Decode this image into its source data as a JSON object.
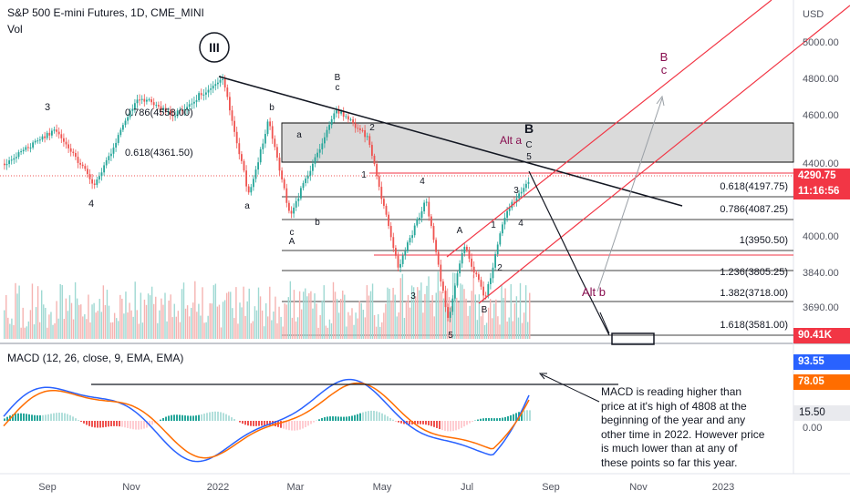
{
  "header": {
    "title": "S&P 500 E-mini Futures, 1D, CME_MINI",
    "vol_label": "Vol"
  },
  "macd_header": "MACD (12, 26, close, 9, EMA, EMA)",
  "colors": {
    "up": "#26a69a",
    "down": "#ef5350",
    "macd_line": "#2962ff",
    "signal_line": "#ff6d00",
    "box_fill": "#d4d4d4",
    "channel": "#f23645",
    "annotation": "#880e4f"
  },
  "price_axis": {
    "unit": "USD",
    "ticks": [
      "5000.00",
      "4800.00",
      "4600.00",
      "4400.00",
      "4000.00",
      "3840.00",
      "3690.00"
    ]
  },
  "price_tags": {
    "last_price": "4290.75",
    "countdown": "11:16:56",
    "volume": "90.41K",
    "macd_value": "93.55",
    "signal_value": "78.05",
    "hist_value": "15.50",
    "macd_zero_label": "0.00"
  },
  "time_axis": [
    "Sep",
    "Nov",
    "2022",
    "Mar",
    "May",
    "Jul",
    "Sep",
    "Nov",
    "2023"
  ],
  "fib_levels": [
    {
      "label": "0.786(4558.00)"
    },
    {
      "label": "0.618(4361.50)"
    },
    {
      "label": "0.618(4197.75)"
    },
    {
      "label": "0.786(4087.25)"
    },
    {
      "label": "1(3950.50)"
    },
    {
      "label": "1.236(3805.25)"
    },
    {
      "label": "1.382(3718.00)"
    },
    {
      "label": "1.618(3581.00)"
    }
  ],
  "wave_labels": [
    {
      "text": "III",
      "note": "circled"
    },
    {
      "text": "3"
    },
    {
      "text": "4"
    },
    {
      "text": "b"
    },
    {
      "text": "a"
    },
    {
      "text": "a"
    },
    {
      "text": "B"
    },
    {
      "text": "c"
    },
    {
      "text": "2"
    },
    {
      "text": "b"
    },
    {
      "text": "c"
    },
    {
      "text": "A"
    },
    {
      "text": "1"
    },
    {
      "text": "4"
    },
    {
      "text": "A"
    },
    {
      "text": "1"
    },
    {
      "text": "3"
    },
    {
      "text": "4"
    },
    {
      "text": "2"
    },
    {
      "text": "3"
    },
    {
      "text": "B"
    },
    {
      "text": "5"
    },
    {
      "text": "B"
    },
    {
      "text": "C"
    },
    {
      "text": "5"
    },
    {
      "text": "Alt a"
    },
    {
      "text": "Alt b"
    },
    {
      "text": "B"
    },
    {
      "text": "c"
    }
  ],
  "annotation_note": "MACD is reading higher than price at it's high of 4808 at the beginning of the year and any other time in 2022.  However price is much lower than at any of these points so far this year.",
  "chart_data": {
    "type": "candlestick",
    "title": "S&P 500 E-mini Futures, 1D, CME_MINI",
    "ylabel": "USD",
    "x_range": [
      "2021-08",
      "2023-01"
    ],
    "ylim": [
      3581,
      5100
    ],
    "price_path": [
      {
        "date": "2021-08-15",
        "price": 4400
      },
      {
        "date": "2021-09-05",
        "price": 4540
      },
      {
        "date": "2021-10-04",
        "price": 4280
      },
      {
        "date": "2021-11-05",
        "price": 4700
      },
      {
        "date": "2021-12-01",
        "price": 4600
      },
      {
        "date": "2022-01-04",
        "price": 4808
      },
      {
        "date": "2022-01-24",
        "price": 4220
      },
      {
        "date": "2022-02-08",
        "price": 4580
      },
      {
        "date": "2022-02-24",
        "price": 4110
      },
      {
        "date": "2022-03-29",
        "price": 4630
      },
      {
        "date": "2022-04-20",
        "price": 4510
      },
      {
        "date": "2022-05-12",
        "price": 3860
      },
      {
        "date": "2022-06-01",
        "price": 4200
      },
      {
        "date": "2022-06-17",
        "price": 3640
      },
      {
        "date": "2022-06-28",
        "price": 3960
      },
      {
        "date": "2022-07-14",
        "price": 3730
      },
      {
        "date": "2022-07-29",
        "price": 4130
      },
      {
        "date": "2022-08-17",
        "price": 4327
      },
      {
        "date": "2022-08-19",
        "price": 4290.75
      }
    ],
    "macd": {
      "macd": 93.55,
      "signal": 78.05,
      "histogram": 15.5
    }
  }
}
